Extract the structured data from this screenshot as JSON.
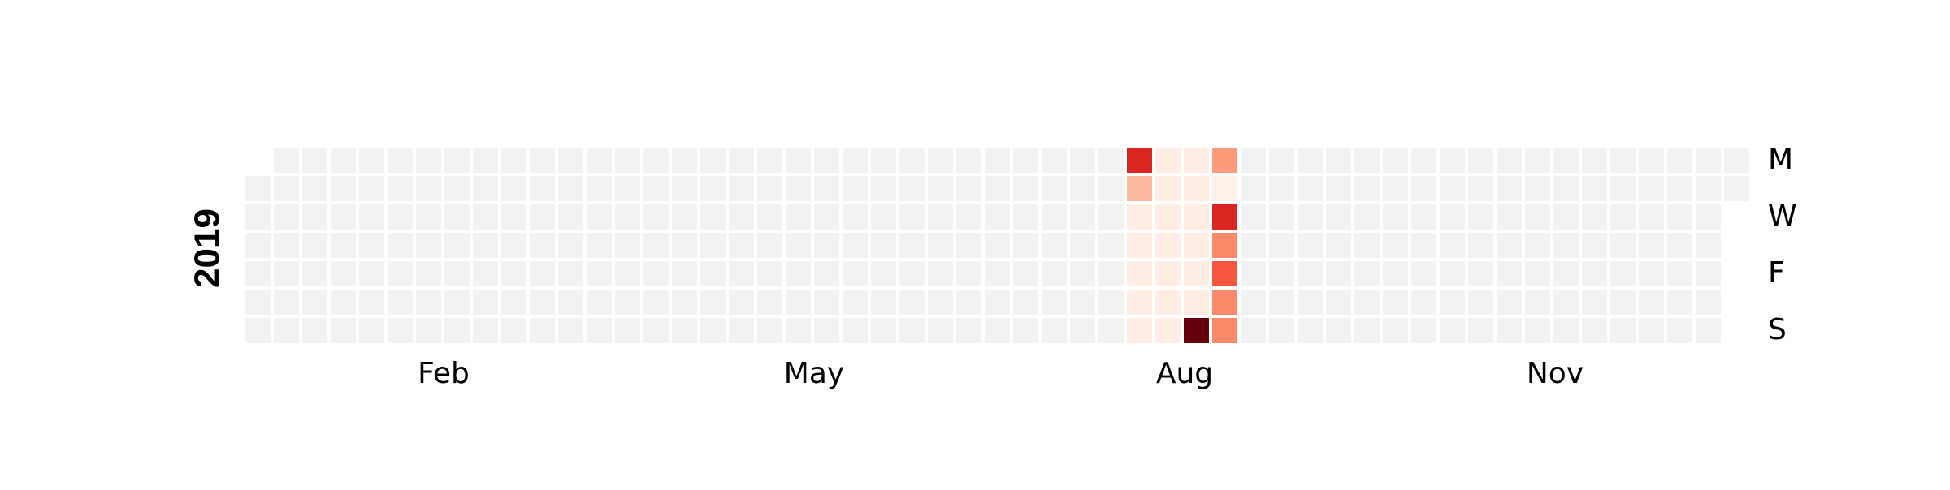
{
  "chart_data": {
    "type": "heatmap",
    "title": "",
    "year": "2019",
    "start_date": "2019-01-01",
    "end_date": "2019-12-31",
    "month_labels": [
      "Feb",
      "May",
      "Aug",
      "Nov"
    ],
    "weekday_labels": [
      "M",
      "W",
      "F",
      "S"
    ],
    "colormap": "Reds",
    "empty_color": "#f2f2f2",
    "grid": false,
    "legend": "none",
    "values": [
      {
        "date": "2019-08-05",
        "value": 70
      },
      {
        "date": "2019-08-06",
        "value": 25
      },
      {
        "date": "2019-08-07",
        "value": 5
      },
      {
        "date": "2019-08-08",
        "value": 5
      },
      {
        "date": "2019-08-09",
        "value": 5
      },
      {
        "date": "2019-08-10",
        "value": 5
      },
      {
        "date": "2019-08-11",
        "value": 5
      },
      {
        "date": "2019-08-12",
        "value": 5
      },
      {
        "date": "2019-08-13",
        "value": 5
      },
      {
        "date": "2019-08-14",
        "value": 5
      },
      {
        "date": "2019-08-15",
        "value": 5
      },
      {
        "date": "2019-08-16",
        "value": 5
      },
      {
        "date": "2019-08-17",
        "value": 5
      },
      {
        "date": "2019-08-18",
        "value": 5
      },
      {
        "date": "2019-08-19",
        "value": 5
      },
      {
        "date": "2019-08-20",
        "value": 5
      },
      {
        "date": "2019-08-21",
        "value": 5
      },
      {
        "date": "2019-08-22",
        "value": 5
      },
      {
        "date": "2019-08-23",
        "value": 5
      },
      {
        "date": "2019-08-24",
        "value": 5
      },
      {
        "date": "2019-08-25",
        "value": 100
      },
      {
        "date": "2019-08-26",
        "value": 35
      },
      {
        "date": "2019-08-27",
        "value": 3
      },
      {
        "date": "2019-08-28",
        "value": 70
      },
      {
        "date": "2019-08-29",
        "value": 40
      },
      {
        "date": "2019-08-30",
        "value": 55
      },
      {
        "date": "2019-08-31",
        "value": 40
      },
      {
        "date": "2019-09-01",
        "value": 40
      }
    ]
  }
}
